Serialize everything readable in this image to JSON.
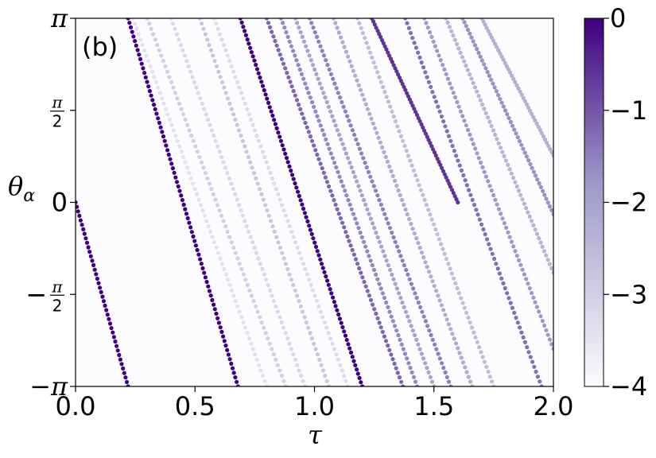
{
  "chart_data": {
    "type": "scatter",
    "panel_label": "(b)",
    "xlabel": "τ",
    "ylabel": "θ",
    "ylabel_sub": "α",
    "xlim": [
      0.0,
      2.0
    ],
    "ylim": [
      -3.14159,
      3.14159
    ],
    "x_ticks": [
      {
        "value": 0.0,
        "label": "0.0"
      },
      {
        "value": 0.5,
        "label": "0.5"
      },
      {
        "value": 1.0,
        "label": "1.0"
      },
      {
        "value": 1.5,
        "label": "1.5"
      },
      {
        "value": 2.0,
        "label": "2.0"
      }
    ],
    "y_ticks": [
      {
        "value": -3.14159,
        "label": "−π",
        "kind": "plain"
      },
      {
        "value": -1.5708,
        "label": "−",
        "num": "π",
        "den": "2",
        "kind": "frac"
      },
      {
        "value": 0.0,
        "label": "0",
        "kind": "plain"
      },
      {
        "value": 1.5708,
        "label": "",
        "num": "π",
        "den": "2",
        "kind": "frac"
      },
      {
        "value": 3.14159,
        "label": "π",
        "kind": "plain"
      }
    ],
    "colorbar": {
      "colormap": "Purples",
      "min": -4,
      "max": 0,
      "ticks": [
        {
          "value": 0,
          "label": "0"
        },
        {
          "value": -1,
          "label": "−1"
        },
        {
          "value": -2,
          "label": "−2"
        },
        {
          "value": -3,
          "label": "−3"
        },
        {
          "value": -4,
          "label": "−4"
        }
      ],
      "color_low": "#fcfbfd",
      "color_mid": "#9e9ac8",
      "color_high": "#3f007d"
    },
    "series": [
      {
        "x0": 0.0,
        "x1": 0.22,
        "y0": 0.0,
        "y1": -3.14159,
        "level": 0.0,
        "points": 42
      },
      {
        "x0": 0.22,
        "x1": 0.68,
        "y0": 3.14159,
        "y1": -3.14159,
        "level": 0.0,
        "points": 82
      },
      {
        "x0": 0.69,
        "x1": 1.2,
        "y0": 3.14159,
        "y1": -3.14159,
        "level": 0.0,
        "points": 88
      },
      {
        "x0": 0.8,
        "x1": 1.37,
        "y0": 3.14159,
        "y1": -3.14159,
        "level": -1.2,
        "points": 82
      },
      {
        "x0": 0.86,
        "x1": 1.43,
        "y0": 3.14159,
        "y1": -3.14159,
        "level": -1.6,
        "points": 80
      },
      {
        "x0": 0.92,
        "x1": 1.5,
        "y0": 3.14159,
        "y1": -3.14159,
        "level": -2.0,
        "points": 80
      },
      {
        "x0": 0.98,
        "x1": 1.57,
        "y0": 3.14159,
        "y1": -3.14159,
        "level": -1.5,
        "points": 80
      },
      {
        "x0": 1.08,
        "x1": 1.66,
        "y0": 3.14159,
        "y1": -3.14159,
        "level": -2.2,
        "points": 78
      },
      {
        "x0": 1.18,
        "x1": 1.75,
        "y0": 3.14159,
        "y1": -3.14159,
        "level": -2.6,
        "points": 76
      },
      {
        "x0": 1.24,
        "x1": 1.6,
        "y0": 3.14159,
        "y1": 0.0,
        "level": -0.6,
        "points": 60
      },
      {
        "x0": 0.24,
        "x1": 0.8,
        "y0": 3.14159,
        "y1": -3.14159,
        "level": -3.4,
        "points": 70
      },
      {
        "x0": 0.3,
        "x1": 0.88,
        "y0": 3.14159,
        "y1": -3.14159,
        "level": -3.0,
        "points": 70
      },
      {
        "x0": 0.4,
        "x1": 0.96,
        "y0": 3.14159,
        "y1": -3.14159,
        "level": -3.2,
        "points": 70
      },
      {
        "x0": 0.52,
        "x1": 1.06,
        "y0": 3.14159,
        "y1": -3.14159,
        "level": -2.8,
        "points": 70
      },
      {
        "x0": 0.58,
        "x1": 1.14,
        "y0": 3.14159,
        "y1": -3.14159,
        "level": -3.3,
        "points": 70
      },
      {
        "x0": 1.38,
        "x1": 1.95,
        "y0": 3.14159,
        "y1": -3.14159,
        "level": -1.3,
        "points": 76
      },
      {
        "x0": 1.46,
        "x1": 2.0,
        "y0": 3.14159,
        "y1": -2.5,
        "level": -1.8,
        "points": 72
      },
      {
        "x0": 1.55,
        "x1": 2.0,
        "y0": 3.14159,
        "y1": -1.2,
        "level": -2.4,
        "points": 60
      },
      {
        "x0": 1.62,
        "x1": 2.0,
        "y0": 3.14159,
        "y1": -0.2,
        "level": -1.7,
        "points": 52
      },
      {
        "x0": 1.7,
        "x1": 2.0,
        "y0": 3.14159,
        "y1": 0.8,
        "level": -2.3,
        "points": 44
      }
    ]
  }
}
